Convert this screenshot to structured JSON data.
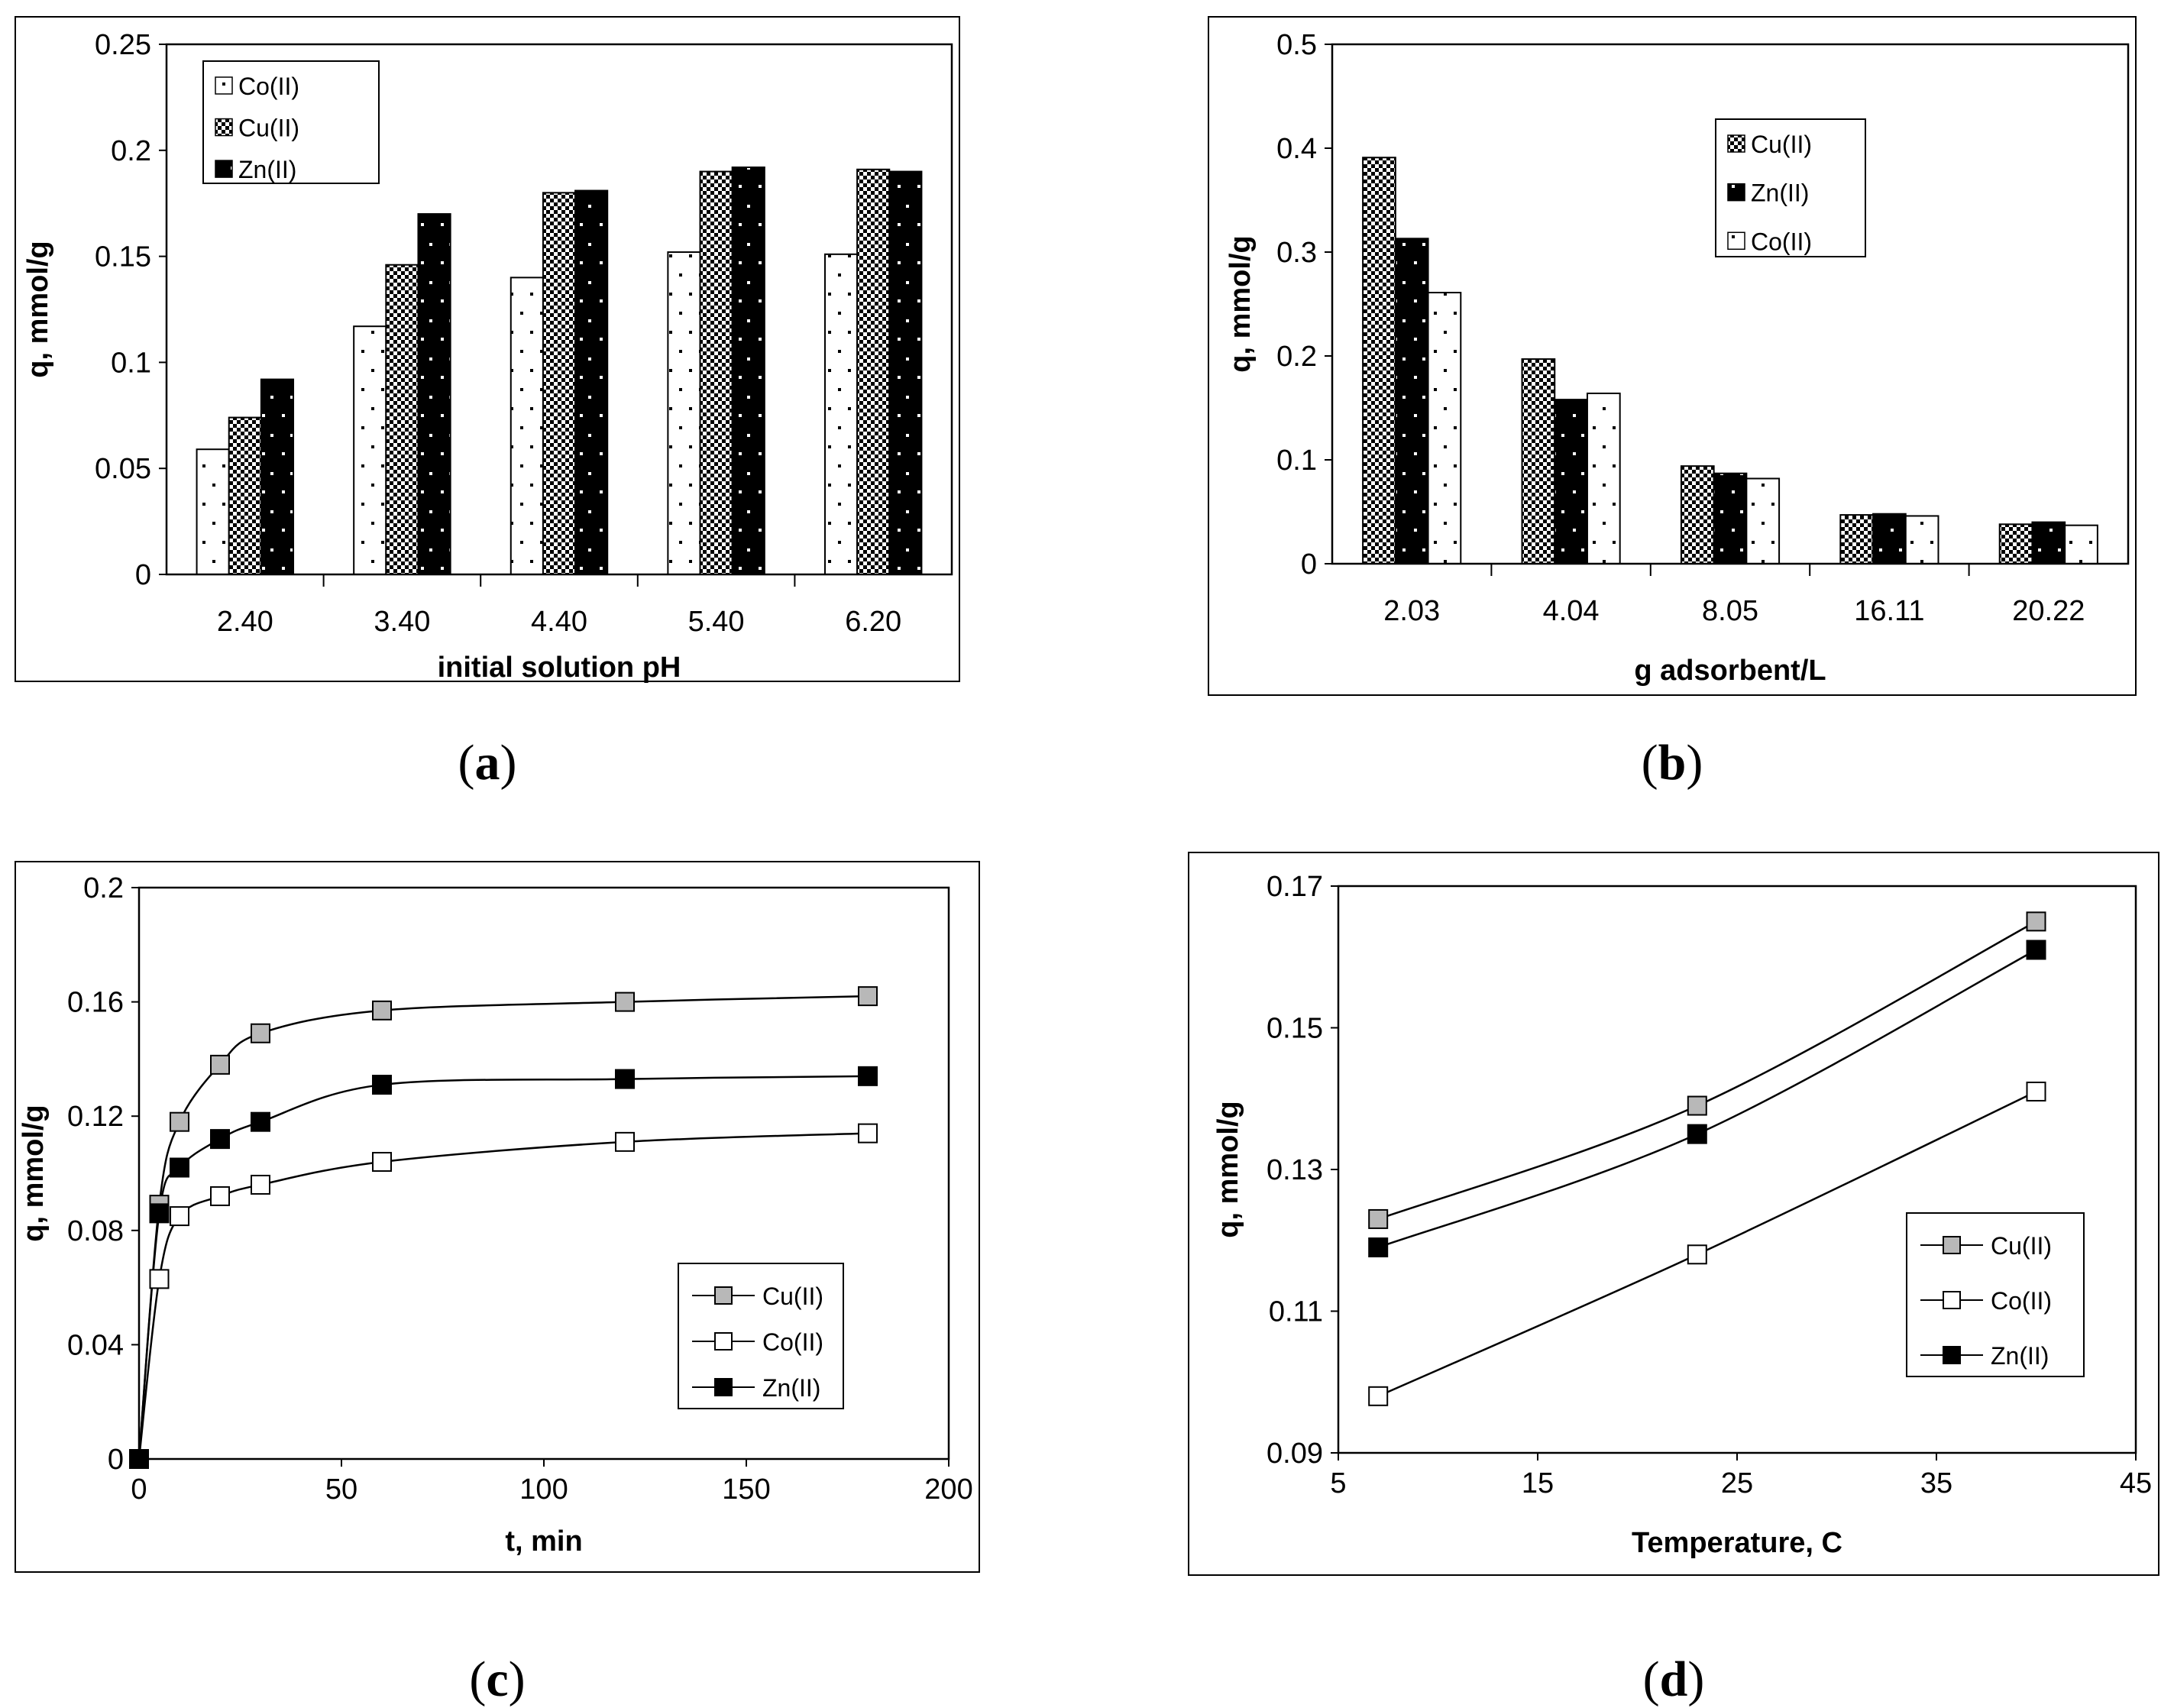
{
  "chart_data": [
    {
      "id": "a",
      "type": "bar",
      "caption": "a",
      "xlabel": "initial solution pH",
      "ylabel": "q, mmol/g",
      "ylim": [
        0,
        0.25
      ],
      "yticks": [
        "0",
        "0.05",
        "0.1",
        "0.15",
        "0.2",
        "0.25"
      ],
      "categories": [
        "2.40",
        "3.40",
        "4.40",
        "5.40",
        "6.20"
      ],
      "series": [
        {
          "name": "Co(II)",
          "pattern": "dots",
          "values": [
            0.059,
            0.117,
            0.14,
            0.152,
            0.151
          ]
        },
        {
          "name": "Cu(II)",
          "pattern": "check",
          "values": [
            0.074,
            0.146,
            0.18,
            0.19,
            0.191
          ]
        },
        {
          "name": "Zn(II)",
          "pattern": "solid",
          "values": [
            0.092,
            0.17,
            0.181,
            0.192,
            0.19
          ]
        }
      ],
      "legend": "top-left"
    },
    {
      "id": "b",
      "type": "bar",
      "caption": "b",
      "xlabel": "g adsorbent/L",
      "ylabel": "q, mmol/g",
      "ylim": [
        0,
        0.5
      ],
      "yticks": [
        "0",
        "0.1",
        "0.2",
        "0.3",
        "0.4",
        "0.5"
      ],
      "categories": [
        "2.03",
        "4.04",
        "8.05",
        "16.11",
        "20.22"
      ],
      "series": [
        {
          "name": "Cu(II)",
          "pattern": "check",
          "values": [
            0.391,
            0.197,
            0.094,
            0.047,
            0.038
          ]
        },
        {
          "name": "Zn(II)",
          "pattern": "solid",
          "values": [
            0.313,
            0.158,
            0.087,
            0.048,
            0.04
          ]
        },
        {
          "name": "Co(II)",
          "pattern": "dots",
          "values": [
            0.261,
            0.164,
            0.082,
            0.046,
            0.037
          ]
        }
      ],
      "legend": "top-right"
    },
    {
      "id": "c",
      "type": "line",
      "caption": "c",
      "xlabel": "t, min",
      "ylabel": "q, mmol/g",
      "xlim": [
        0,
        200
      ],
      "ylim": [
        0,
        0.2
      ],
      "xticks": [
        "0",
        "50",
        "100",
        "150",
        "200"
      ],
      "yticks": [
        "0",
        "0.04",
        "0.08",
        "0.12",
        "0.16",
        "0.2"
      ],
      "series": [
        {
          "name": "Cu(II)",
          "marker": "gray",
          "x": [
            0,
            5,
            10,
            20,
            30,
            60,
            120,
            180
          ],
          "y": [
            0,
            0.089,
            0.118,
            0.138,
            0.149,
            0.157,
            0.16,
            0.162
          ]
        },
        {
          "name": "Co(II)",
          "marker": "white",
          "x": [
            0,
            5,
            10,
            20,
            30,
            60,
            120,
            180
          ],
          "y": [
            0,
            0.063,
            0.085,
            0.092,
            0.096,
            0.104,
            0.111,
            0.114
          ]
        },
        {
          "name": "Zn(II)",
          "marker": "black",
          "x": [
            0,
            5,
            10,
            20,
            30,
            60,
            120,
            180
          ],
          "y": [
            0,
            0.086,
            0.102,
            0.112,
            0.118,
            0.131,
            0.133,
            0.134
          ]
        }
      ],
      "legend": "bottom-right"
    },
    {
      "id": "d",
      "type": "line",
      "caption": "d",
      "xlabel": "Temperature, C",
      "ylabel": "q, mmol/g",
      "xlim": [
        5,
        45
      ],
      "ylim": [
        0.09,
        0.17
      ],
      "xticks": [
        "5",
        "15",
        "25",
        "35",
        "45"
      ],
      "yticks": [
        "0.09",
        "0.11",
        "0.13",
        "0.15",
        "0.17"
      ],
      "series": [
        {
          "name": "Cu(II)",
          "marker": "gray",
          "x": [
            7,
            23,
            40
          ],
          "y": [
            0.123,
            0.139,
            0.165
          ]
        },
        {
          "name": "Co(II)",
          "marker": "white",
          "x": [
            7,
            23,
            40
          ],
          "y": [
            0.098,
            0.118,
            0.141
          ]
        },
        {
          "name": "Zn(II)",
          "marker": "black",
          "x": [
            7,
            23,
            40
          ],
          "y": [
            0.119,
            0.135,
            0.161
          ]
        }
      ],
      "legend": "bottom-right"
    }
  ]
}
